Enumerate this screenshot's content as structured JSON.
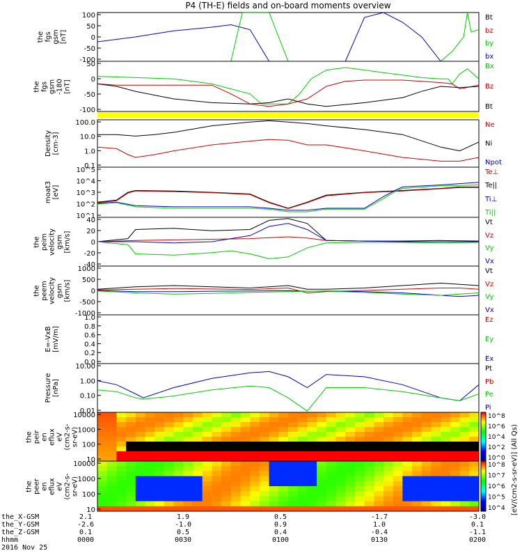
{
  "title": "P4 (TH-E) fields and on-board moments overview",
  "date_label": "2016 Nov 25",
  "colorbar_label": "[eV/(cm2-s-sr-eV)] (All Qs)",
  "colorbar_ticks_top": [
    "10^8",
    "10^6",
    "10^4",
    "10^2",
    "10^0"
  ],
  "colorbar_ticks_bottom": [
    "10^8",
    "10^7",
    "10^6",
    "10^5",
    "10^4"
  ],
  "footer": {
    "row_labels": [
      "the_X-GSM",
      "the_Y-GSM",
      "the_Z-GSM",
      "hhmm"
    ],
    "columns": [
      {
        "values": [
          "2.1",
          "-2.6",
          "0.1",
          "0000"
        ]
      },
      {
        "values": [
          "1.9",
          "-1.0",
          "0.5",
          "0030"
        ]
      },
      {
        "values": [
          "0.5",
          "0.9",
          "0.4",
          "0100"
        ]
      },
      {
        "values": [
          "-1.7",
          "1.0",
          "-0.4",
          "0130"
        ]
      },
      {
        "values": [
          "-3.0",
          "0.1",
          "-1.1",
          "0200"
        ]
      }
    ]
  },
  "chart_data": [
    {
      "type": "line",
      "ylabel_lines": [
        "the",
        "fgs",
        "gsm",
        "[nT]"
      ],
      "yticks": [
        "100",
        "50",
        "0",
        "-50",
        "-100"
      ],
      "ylim": [
        -100,
        100
      ],
      "legend": [
        {
          "name": "Bt",
          "color": "#000000"
        },
        {
          "name": "bz",
          "color": "#d00000"
        },
        {
          "name": "by",
          "color": "#00cc00"
        },
        {
          "name": "bx",
          "color": "#0000d0"
        }
      ],
      "series": [
        {
          "color": "#0000d0",
          "x": [
            0,
            10,
            20,
            30,
            35,
            40,
            45,
            50,
            60,
            65
          ],
          "y": [
            -20,
            0,
            25,
            40,
            50,
            30,
            -100,
            -100,
            -100,
            -100
          ]
        },
        {
          "color": "#0000d0",
          "x": [
            65,
            70,
            75,
            80,
            85,
            90,
            95,
            97,
            100
          ],
          "y": [
            -100,
            80,
            100,
            60,
            0,
            -100,
            -100,
            -100,
            -100
          ]
        },
        {
          "color": "#00cc00",
          "x": [
            35,
            38,
            42,
            45,
            50,
            90,
            93,
            96,
            97,
            98,
            100
          ],
          "y": [
            -100,
            100,
            100,
            100,
            -100,
            -100,
            -60,
            0,
            100,
            20,
            30
          ]
        }
      ]
    },
    {
      "type": "line",
      "ylabel_lines": [
        "the",
        "fgs",
        "gsm",
        "-180",
        "[nT]"
      ],
      "yticks": [
        "50",
        "0",
        "-50",
        "-100"
      ],
      "ylim": [
        -130,
        70
      ],
      "legend": [
        {
          "name": "Bx",
          "color": "#00cc00"
        },
        {
          "name": "Bz",
          "color": "#d00000"
        },
        {
          "name": "Bt",
          "color": "#000000"
        }
      ],
      "series": [
        {
          "color": "#00cc00",
          "x": [
            0,
            10,
            20,
            30,
            40,
            43,
            50,
            53,
            56,
            60,
            65,
            70,
            75,
            80,
            85,
            90,
            92,
            93,
            95,
            97,
            100
          ],
          "y": [
            10,
            5,
            0,
            -20,
            -60,
            -100,
            -100,
            -60,
            0,
            35,
            45,
            35,
            25,
            15,
            5,
            0,
            0,
            -20,
            20,
            40,
            0
          ]
        },
        {
          "color": "#d00000",
          "x": [
            0,
            5,
            10,
            20,
            30,
            35,
            40,
            45,
            50,
            55,
            60,
            65,
            70,
            75,
            80,
            85,
            90,
            93,
            95,
            100
          ],
          "y": [
            -20,
            -25,
            -25,
            -25,
            -25,
            -60,
            -100,
            -110,
            -100,
            -80,
            -30,
            -10,
            -5,
            -5,
            -5,
            -10,
            -15,
            -20,
            -40,
            -25
          ]
        },
        {
          "color": "#000000",
          "x": [
            0,
            5,
            10,
            20,
            30,
            40,
            45,
            50,
            55,
            60,
            70,
            80,
            85,
            90,
            95,
            100
          ],
          "y": [
            -20,
            -30,
            -50,
            -80,
            -95,
            -100,
            -95,
            -80,
            -100,
            -110,
            -95,
            -75,
            -50,
            -30,
            -35,
            -30
          ]
        }
      ]
    },
    {
      "type": "line",
      "log": true,
      "ylabel_lines": [
        "Density",
        "[cm-3]"
      ],
      "yticks": [
        "100.0",
        "10.0",
        "1.0",
        "0.1"
      ],
      "ylim": [
        0.05,
        300
      ],
      "legend": [
        {
          "name": "Ne",
          "color": "#d00000"
        },
        {
          "name": "Ni",
          "color": "#000000"
        },
        {
          "name": "Npot",
          "color": "#0000d0"
        }
      ],
      "series": [
        {
          "color": "#000000",
          "x": [
            0,
            5,
            10,
            15,
            20,
            30,
            40,
            45,
            50,
            55,
            60,
            70,
            80,
            90,
            95,
            100
          ],
          "y": [
            20,
            20,
            15,
            20,
            30,
            100,
            200,
            250,
            200,
            150,
            100,
            50,
            20,
            2,
            1,
            5
          ]
        },
        {
          "color": "#d00000",
          "x": [
            0,
            5,
            8,
            10,
            15,
            20,
            30,
            40,
            45,
            50,
            55,
            60,
            70,
            80,
            90,
            95,
            100
          ],
          "y": [
            2,
            1.5,
            0.5,
            0.3,
            0.5,
            1,
            3,
            6,
            8,
            7,
            3,
            3,
            1,
            0.3,
            0.15,
            0.15,
            0.3
          ]
        }
      ]
    },
    {
      "type": "line",
      "log": true,
      "ylabel_lines": [
        "moat3",
        "[eV]"
      ],
      "yticks": [
        "10^5",
        "10^4",
        "10^3",
        "10^2",
        "10^1"
      ],
      "ylim": [
        5,
        100000
      ],
      "legend": [
        {
          "name": "Te⊥",
          "color": "#d00000"
        },
        {
          "name": "Te||",
          "color": "#000000"
        },
        {
          "name": "Ti⊥",
          "color": "#0000d0"
        },
        {
          "name": "Ti||",
          "color": "#00cc00"
        }
      ],
      "series": [
        {
          "color": "#000000",
          "x": [
            0,
            5,
            8,
            10,
            20,
            30,
            40,
            45,
            50,
            55,
            60,
            70,
            80,
            90,
            95,
            100
          ],
          "y": [
            100,
            150,
            700,
            1000,
            900,
            700,
            500,
            100,
            30,
            100,
            400,
            700,
            1000,
            1500,
            2000,
            2000
          ]
        },
        {
          "color": "#d00000",
          "x": [
            0,
            5,
            8,
            10,
            20,
            30,
            40,
            45,
            50,
            55,
            60,
            70,
            80,
            90,
            95,
            100
          ],
          "y": [
            90,
            130,
            600,
            900,
            800,
            650,
            450,
            90,
            28,
            90,
            350,
            650,
            900,
            1400,
            1800,
            1800
          ]
        },
        {
          "color": "#0000d0",
          "x": [
            0,
            5,
            10,
            20,
            30,
            40,
            45,
            50,
            55,
            60,
            70,
            75,
            78,
            80,
            90,
            100
          ],
          "y": [
            80,
            100,
            50,
            40,
            40,
            40,
            30,
            20,
            20,
            30,
            30,
            300,
            1000,
            2000,
            3000,
            5000
          ]
        },
        {
          "color": "#00cc00",
          "x": [
            0,
            5,
            10,
            20,
            30,
            40,
            45,
            50,
            55,
            60,
            70,
            75,
            78,
            80,
            90,
            100
          ],
          "y": [
            70,
            90,
            40,
            30,
            30,
            30,
            25,
            15,
            15,
            25,
            25,
            200,
            800,
            1500,
            2500,
            3000
          ]
        }
      ]
    },
    {
      "type": "line",
      "ylabel_lines": [
        "the",
        "peim",
        "velocity",
        "gsm",
        "[km/s]"
      ],
      "yticks": [
        "40",
        "20",
        "0",
        "-20",
        "-40"
      ],
      "ylim": [
        -40,
        40
      ],
      "legend": [
        {
          "name": "Vt",
          "color": "#000000"
        },
        {
          "name": "Vz",
          "color": "#d00000"
        },
        {
          "name": "Vy",
          "color": "#00cc00"
        },
        {
          "name": "Vx",
          "color": "#0000d0"
        }
      ],
      "series": [
        {
          "color": "#000000",
          "x": [
            0,
            8,
            10,
            20,
            30,
            40,
            45,
            50,
            55,
            60,
            70,
            80,
            90,
            100
          ],
          "y": [
            0,
            5,
            20,
            22,
            18,
            20,
            35,
            38,
            30,
            2,
            1,
            1,
            2,
            1
          ]
        },
        {
          "color": "#d00000",
          "x": [
            0,
            10,
            20,
            30,
            40,
            50,
            55,
            60,
            70,
            80,
            90,
            100
          ],
          "y": [
            0,
            2,
            3,
            4,
            5,
            8,
            6,
            2,
            1,
            0,
            0,
            0
          ]
        },
        {
          "color": "#0000d0",
          "x": [
            0,
            10,
            20,
            30,
            40,
            45,
            50,
            55,
            60,
            70,
            80,
            90,
            100
          ],
          "y": [
            0,
            0,
            -2,
            0,
            10,
            25,
            30,
            20,
            2,
            1,
            0,
            0,
            0
          ]
        },
        {
          "color": "#00cc00",
          "x": [
            0,
            8,
            10,
            20,
            30,
            35,
            40,
            45,
            50,
            55,
            60,
            70,
            80,
            90,
            100
          ],
          "y": [
            0,
            -5,
            -20,
            -22,
            -18,
            -15,
            -20,
            -28,
            -25,
            -10,
            -2,
            -1,
            -1,
            -2,
            -1
          ]
        }
      ]
    },
    {
      "type": "line",
      "ylabel_lines": [
        "the",
        "peem",
        "velocity",
        "gsm",
        "[km/s]"
      ],
      "yticks": [
        "1000",
        "500",
        "0",
        "-500",
        "-1000"
      ],
      "ylim": [
        -1000,
        1000
      ],
      "legend": [
        {
          "name": "Vt",
          "color": "#000000"
        },
        {
          "name": "Vz",
          "color": "#d00000"
        },
        {
          "name": "Vy",
          "color": "#00cc00"
        },
        {
          "name": "Vx",
          "color": "#0000d0"
        }
      ],
      "series": [
        {
          "color": "#000000",
          "x": [
            0,
            10,
            20,
            30,
            40,
            50,
            55,
            60,
            70,
            80,
            90,
            95,
            100
          ],
          "y": [
            50,
            150,
            200,
            150,
            100,
            200,
            50,
            50,
            100,
            200,
            300,
            250,
            200
          ]
        },
        {
          "color": "#d00000",
          "x": [
            0,
            10,
            20,
            30,
            40,
            50,
            55,
            60,
            70,
            80,
            90,
            95,
            100
          ],
          "y": [
            20,
            50,
            80,
            60,
            40,
            100,
            -100,
            -50,
            0,
            50,
            100,
            100,
            50
          ]
        },
        {
          "color": "#0000d0",
          "x": [
            0,
            10,
            20,
            30,
            40,
            50,
            55,
            60,
            70,
            80,
            90,
            95,
            100
          ],
          "y": [
            0,
            -50,
            -50,
            -30,
            -20,
            -10,
            -30,
            -20,
            -50,
            -100,
            -200,
            -250,
            -200
          ]
        },
        {
          "color": "#00cc00",
          "x": [
            0,
            10,
            20,
            30,
            40,
            50,
            55,
            60,
            70,
            80,
            90,
            95,
            100
          ],
          "y": [
            -20,
            -100,
            -150,
            -120,
            -80,
            -50,
            -30,
            -30,
            -80,
            -150,
            -200,
            -150,
            -100
          ]
        }
      ]
    },
    {
      "type": "line",
      "ylabel_lines": [
        "E=-VxB",
        "[mV/m]"
      ],
      "yticks": [
        "1.0",
        "0.8",
        "0.6",
        "0.4",
        "0.2",
        "0.0"
      ],
      "ylim": [
        0,
        1
      ],
      "legend": [
        {
          "name": "Ez",
          "color": "#d00000"
        },
        {
          "name": "Ey",
          "color": "#00cc00"
        },
        {
          "name": "Ex",
          "color": "#0000d0"
        }
      ],
      "series": []
    },
    {
      "type": "line",
      "log": true,
      "ylabel_lines": [
        "Pressure",
        "[nPa]"
      ],
      "yticks": [
        "10.00",
        "1.00",
        "0.10",
        "0.01"
      ],
      "ylim": [
        0.004,
        20
      ],
      "legend": [
        {
          "name": "Pt",
          "color": "#000000"
        },
        {
          "name": "Pb",
          "color": "#d00000"
        },
        {
          "name": "Pe",
          "color": "#00cc00"
        },
        {
          "name": "Pi",
          "color": "#0000d0"
        }
      ],
      "series": [
        {
          "color": "#0000d0",
          "x": [
            0,
            5,
            10,
            12,
            20,
            30,
            40,
            45,
            50,
            55,
            60,
            70,
            80,
            90,
            95,
            100
          ],
          "y": [
            1,
            0.5,
            0.1,
            0.05,
            0.3,
            1.5,
            4,
            5,
            2,
            0.3,
            3,
            2,
            0.5,
            0.05,
            0.03,
            0.5
          ]
        },
        {
          "color": "#00cc00",
          "x": [
            0,
            5,
            10,
            12,
            20,
            30,
            40,
            45,
            50,
            55,
            60,
            70,
            80,
            90,
            95,
            100
          ],
          "y": [
            0.2,
            0.15,
            0.05,
            0.04,
            0.07,
            0.2,
            0.4,
            0.3,
            0.05,
            0.005,
            0.3,
            0.3,
            0.15,
            0.05,
            0.03,
            0.1
          ]
        }
      ]
    },
    {
      "type": "heatmap",
      "ylabel_lines": [
        "the",
        "peir",
        "en",
        "eflux",
        "eV",
        "(cm2-s-",
        "sr-eV)"
      ],
      "yticks": [
        "10000",
        "1000",
        "100",
        "10"
      ],
      "log": true,
      "ylim": [
        5,
        20000
      ]
    },
    {
      "type": "heatmap",
      "ylabel_lines": [
        "the",
        "peer",
        "en",
        "eflux",
        "eV",
        "(cm2-s-",
        "sr-eV)"
      ],
      "yticks": [
        "10000",
        "1000",
        "100",
        "10"
      ],
      "log": true,
      "ylim": [
        5,
        20000
      ]
    }
  ]
}
